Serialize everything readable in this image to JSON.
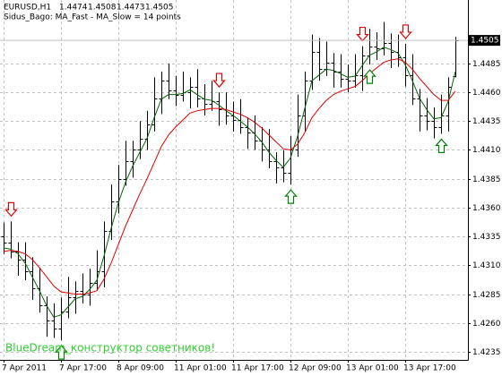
{
  "chart_data": {
    "type": "ohlc",
    "title": "EURUSD,H1",
    "subtitle": "Sidus_Bago: MA_Fast - MA_Slow = 14 points",
    "annotation": "BlueDream_конструктор советников!",
    "bar_color": "#000000",
    "grid": true,
    "ylim": [
      1.4228,
      1.454
    ],
    "yticks": [
      1.4235,
      {
        "value": 1.426,
        "label": "1.4260"
      },
      1.4285,
      {
        "value": 1.431,
        "label": "1.4310"
      },
      1.4335,
      {
        "value": 1.436,
        "label": "1.4360"
      },
      1.4385,
      {
        "value": 1.441,
        "label": "1.4410"
      },
      1.4435,
      {
        "value": 1.446,
        "label": "1.4460"
      },
      1.4485
    ],
    "categories": [
      "7 Apr 2011",
      null,
      null,
      null,
      null,
      null,
      null,
      null,
      "7 Apr 17:00",
      null,
      null,
      null,
      null,
      null,
      null,
      null,
      "8 Apr 09:00",
      null,
      null,
      null,
      null,
      null,
      null,
      null,
      "11 Apr 01:00",
      null,
      null,
      null,
      null,
      null,
      null,
      null,
      "11 Apr 17:00",
      null,
      null,
      null,
      null,
      null,
      null,
      null,
      "12 Apr 09:00",
      null,
      null,
      null,
      null,
      null,
      null,
      null,
      "13 Apr 01:00",
      null,
      null,
      null,
      null,
      null,
      null,
      null,
      "13 Apr 17:00",
      null,
      null,
      null,
      null,
      null,
      null,
      null
    ],
    "open": [
      1.4335,
      1.433,
      1.4322,
      1.4315,
      1.4305,
      1.429,
      1.4275,
      1.4262,
      1.4255,
      1.427,
      1.4282,
      1.4288,
      1.4285,
      1.4295,
      1.4305,
      1.434,
      1.4365,
      1.4385,
      1.44,
      1.441,
      1.442,
      1.4432,
      1.4455,
      1.447,
      1.4462,
      1.4458,
      1.446,
      1.4465,
      1.4455,
      1.445,
      1.4452,
      1.4445,
      1.444,
      1.4436,
      1.443,
      1.4425,
      1.4418,
      1.441,
      1.44,
      1.4395,
      1.439,
      1.441,
      1.444,
      1.447,
      1.4495,
      1.448,
      1.4486,
      1.4478,
      1.4472,
      1.447,
      1.4475,
      1.4492,
      1.45,
      1.4498,
      1.4503,
      1.4495,
      1.449,
      1.4475,
      1.4455,
      1.444,
      1.4435,
      1.443,
      1.444,
      1.4474
    ],
    "high": [
      1.4347,
      1.4348,
      1.433,
      1.433,
      1.4317,
      1.4308,
      1.4283,
      1.4277,
      1.4282,
      1.43,
      1.4296,
      1.4303,
      1.4307,
      1.4323,
      1.4348,
      1.438,
      1.4397,
      1.4418,
      1.4418,
      1.4435,
      1.4444,
      1.4473,
      1.4478,
      1.4485,
      1.4474,
      1.4478,
      1.4473,
      1.448,
      1.4467,
      1.447,
      1.446,
      1.446,
      1.4452,
      1.4454,
      1.4438,
      1.444,
      1.443,
      1.4428,
      1.4408,
      1.441,
      1.4422,
      1.4458,
      1.4478,
      1.451,
      1.4507,
      1.4504,
      1.4494,
      1.4493,
      1.4484,
      1.4493,
      1.45,
      1.4515,
      1.4512,
      1.4521,
      1.4511,
      1.451,
      1.4502,
      1.4493,
      1.4463,
      1.4455,
      1.4447,
      1.4458,
      1.4473,
      1.4508
    ],
    "low": [
      1.432,
      1.4316,
      1.4301,
      1.4297,
      1.428,
      1.4269,
      1.4248,
      1.4247,
      1.4245,
      1.4264,
      1.4268,
      1.4277,
      1.4275,
      1.4289,
      1.4291,
      1.4332,
      1.4355,
      1.4379,
      1.4386,
      1.4402,
      1.441,
      1.4426,
      1.4441,
      1.4454,
      1.4448,
      1.4452,
      1.4446,
      1.4447,
      1.444,
      1.4444,
      1.4431,
      1.4432,
      1.4426,
      1.4424,
      1.4411,
      1.441,
      1.44,
      1.4394,
      1.4381,
      1.4382,
      1.438,
      1.4404,
      1.4426,
      1.4462,
      1.447,
      1.4474,
      1.4464,
      1.4464,
      1.446,
      1.4464,
      1.4461,
      1.4484,
      1.4488,
      1.4492,
      1.4481,
      1.4482,
      1.4465,
      1.4449,
      1.4426,
      1.4427,
      1.442,
      1.4424,
      1.4426,
      1.4473
    ],
    "close": [
      1.433,
      1.4322,
      1.4315,
      1.4305,
      1.429,
      1.4275,
      1.4262,
      1.4255,
      1.427,
      1.4282,
      1.4288,
      1.4285,
      1.4295,
      1.4305,
      1.434,
      1.4365,
      1.4385,
      1.44,
      1.441,
      1.442,
      1.4432,
      1.4455,
      1.447,
      1.4462,
      1.4458,
      1.446,
      1.4465,
      1.4455,
      1.445,
      1.4452,
      1.4445,
      1.444,
      1.4436,
      1.443,
      1.4425,
      1.4418,
      1.441,
      1.44,
      1.4395,
      1.439,
      1.441,
      1.444,
      1.447,
      1.4495,
      1.448,
      1.4486,
      1.4478,
      1.4472,
      1.447,
      1.4475,
      1.4492,
      1.45,
      1.4498,
      1.4503,
      1.4495,
      1.449,
      1.4475,
      1.4455,
      1.444,
      1.4435,
      1.443,
      1.444,
      1.4465,
      1.4505
    ],
    "lines": [
      {
        "color": "#006400",
        "values": [
          1.4325,
          1.4324,
          1.432,
          1.4312,
          1.43,
          1.4288,
          1.4275,
          1.4265,
          1.4267,
          1.4274,
          1.4281,
          1.4283,
          1.4289,
          1.4297,
          1.4318,
          1.4342,
          1.4364,
          1.4382,
          1.4396,
          1.4408,
          1.442,
          1.4438,
          1.4454,
          1.4458,
          1.4458,
          1.4459,
          1.4462,
          1.4458,
          1.4454,
          1.4453,
          1.4449,
          1.4444,
          1.444,
          1.4435,
          1.443,
          1.4424,
          1.4417,
          1.4408,
          1.4401,
          1.4395,
          1.4403,
          1.4422,
          1.4446,
          1.447,
          1.4475,
          1.448,
          1.4479,
          1.4476,
          1.4473,
          1.4474,
          1.4483,
          1.4492,
          1.4495,
          1.4499,
          1.4497,
          1.4494,
          1.4484,
          1.447,
          1.4455,
          1.4445,
          1.4437,
          1.4438,
          1.4452,
          1.4478
        ]
      },
      {
        "color": "#e00000",
        "values": [
          1.4322,
          1.4323,
          1.4322,
          1.432,
          1.4315,
          1.4308,
          1.43,
          1.4292,
          1.4287,
          1.4286,
          1.4285,
          1.4285,
          1.4286,
          1.4288,
          1.4298,
          1.4312,
          1.4328,
          1.4344,
          1.4358,
          1.4372,
          1.4385,
          1.4399,
          1.4413,
          1.4423,
          1.443,
          1.4436,
          1.4442,
          1.4444,
          1.4445,
          1.4446,
          1.4446,
          1.4445,
          1.4443,
          1.4441,
          1.4438,
          1.4434,
          1.4429,
          1.4423,
          1.4417,
          1.4411,
          1.441,
          1.4415,
          1.4425,
          1.4438,
          1.4446,
          1.4453,
          1.4458,
          1.4461,
          1.4463,
          1.4465,
          1.447,
          1.4476,
          1.4481,
          1.4486,
          1.4488,
          1.4489,
          1.4486,
          1.448,
          1.4472,
          1.4465,
          1.4458,
          1.4453,
          1.4453,
          1.4461
        ]
      }
    ],
    "sell_arrows": [
      1,
      30,
      50,
      56
    ],
    "sell_color": "#e00000",
    "buy_arrows": [
      8,
      40,
      51,
      61
    ],
    "buy_color": "#008000"
  }
}
